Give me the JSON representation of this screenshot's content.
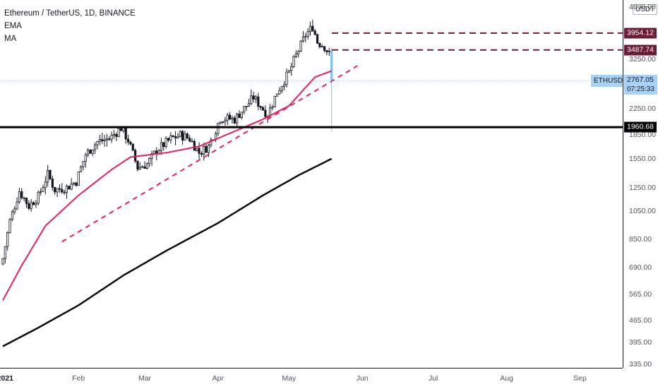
{
  "legend": {
    "title": "Ethereum / TetherUS, 1D, BINANCE",
    "ema_label": "EMA",
    "ma_label": "MA"
  },
  "currency_button": "USDT",
  "colors": {
    "up": "#131722",
    "down": "#131722",
    "last_candle": "#7ec0f0",
    "ema": "#e91e63",
    "ma": "#000000",
    "trendline": "#e91e63",
    "resistance_lines": "#6d1a36",
    "support_line": "#000000",
    "current_price_line": "#7ec0f0"
  },
  "chart_data": {
    "type": "candlestick",
    "symbol": "ETHUSDT",
    "y_scale": "log",
    "ylim": [
      335,
      4800
    ],
    "y_ticks": [
      "335.00",
      "395.00",
      "465.00",
      "565.00",
      "690.00",
      "850.00",
      "1050.00",
      "1250.00",
      "1550.00",
      "1850.00",
      "2250.00",
      "3250.00",
      "4800.00"
    ],
    "x_ticks": [
      "2021",
      "Feb",
      "Mar",
      "Apr",
      "May",
      "Jun",
      "Jul",
      "Aug",
      "Sep"
    ],
    "x_ticks_bold": [
      "2021"
    ],
    "horizontal_levels": [
      {
        "value": 3954.12,
        "label": "3954.12",
        "style": "dashed"
      },
      {
        "value": 3487.74,
        "label": "3487.74",
        "style": "dashed"
      },
      {
        "value": 1960.68,
        "label": "1960.68",
        "style": "solid"
      }
    ],
    "current_price": {
      "ticker": "ETHUSDT",
      "value": 2767.05,
      "label": "2767.05",
      "countdown": "07:25:33"
    },
    "trendline": {
      "start": {
        "date": "2021-01-25",
        "price": 835
      },
      "end": {
        "date": "2021-05-30",
        "price": 3100
      }
    },
    "ohlc_sampled": [
      {
        "date": "2020-12-31",
        "close": 737
      },
      {
        "date": "2021-01-03",
        "close": 975
      },
      {
        "date": "2021-01-07",
        "close": 1220
      },
      {
        "date": "2021-01-11",
        "close": 1090
      },
      {
        "date": "2021-01-15",
        "close": 1170
      },
      {
        "date": "2021-01-19",
        "close": 1380
      },
      {
        "date": "2021-01-22",
        "close": 1230
      },
      {
        "date": "2021-01-27",
        "close": 1250
      },
      {
        "date": "2021-01-31",
        "close": 1310
      },
      {
        "date": "2021-02-04",
        "close": 1600
      },
      {
        "date": "2021-02-09",
        "close": 1760
      },
      {
        "date": "2021-02-14",
        "close": 1800
      },
      {
        "date": "2021-02-19",
        "close": 1950
      },
      {
        "date": "2021-02-22",
        "close": 1780
      },
      {
        "date": "2021-02-26",
        "close": 1450
      },
      {
        "date": "2021-03-02",
        "close": 1490
      },
      {
        "date": "2021-03-06",
        "close": 1650
      },
      {
        "date": "2021-03-12",
        "close": 1800
      },
      {
        "date": "2021-03-16",
        "close": 1850
      },
      {
        "date": "2021-03-20",
        "close": 1800
      },
      {
        "date": "2021-03-24",
        "close": 1620
      },
      {
        "date": "2021-03-28",
        "close": 1700
      },
      {
        "date": "2021-04-02",
        "close": 2100
      },
      {
        "date": "2021-04-08",
        "close": 2080
      },
      {
        "date": "2021-04-13",
        "close": 2300
      },
      {
        "date": "2021-04-16",
        "close": 2450
      },
      {
        "date": "2021-04-22",
        "close": 2150
      },
      {
        "date": "2021-04-26",
        "close": 2550
      },
      {
        "date": "2021-05-01",
        "close": 2950
      },
      {
        "date": "2021-05-04",
        "close": 3350
      },
      {
        "date": "2021-05-08",
        "close": 3900
      },
      {
        "date": "2021-05-11",
        "close": 4150
      },
      {
        "date": "2021-05-13",
        "close": 3700
      },
      {
        "date": "2021-05-16",
        "close": 3580
      },
      {
        "date": "2021-05-18",
        "close": 3380
      },
      {
        "date": "2021-05-19",
        "close": 2767
      }
    ],
    "ema_sampled": [
      {
        "date": "2020-12-31",
        "value": 540
      },
      {
        "date": "2021-01-08",
        "value": 700
      },
      {
        "date": "2021-01-18",
        "value": 940
      },
      {
        "date": "2021-02-01",
        "value": 1180
      },
      {
        "date": "2021-02-15",
        "value": 1430
      },
      {
        "date": "2021-02-23",
        "value": 1570
      },
      {
        "date": "2021-03-10",
        "value": 1620
      },
      {
        "date": "2021-03-24",
        "value": 1700
      },
      {
        "date": "2021-04-05",
        "value": 1860
      },
      {
        "date": "2021-04-20",
        "value": 2080
      },
      {
        "date": "2021-05-01",
        "value": 2300
      },
      {
        "date": "2021-05-12",
        "value": 2850
      },
      {
        "date": "2021-05-19",
        "value": 2980
      }
    ],
    "ma_sampled": [
      {
        "date": "2020-12-31",
        "value": 383
      },
      {
        "date": "2021-01-15",
        "value": 440
      },
      {
        "date": "2021-02-01",
        "value": 520
      },
      {
        "date": "2021-02-20",
        "value": 650
      },
      {
        "date": "2021-03-10",
        "value": 780
      },
      {
        "date": "2021-04-01",
        "value": 960
      },
      {
        "date": "2021-04-20",
        "value": 1180
      },
      {
        "date": "2021-05-05",
        "value": 1370
      },
      {
        "date": "2021-05-19",
        "value": 1550
      }
    ]
  }
}
